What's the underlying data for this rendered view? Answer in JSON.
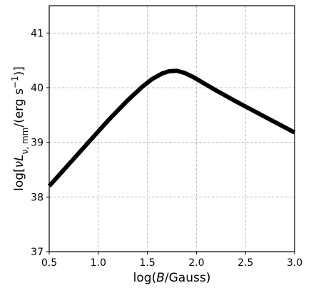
{
  "chart_data": {
    "type": "line",
    "title": "",
    "xlabel_parts": {
      "pre": "log(",
      "var": "B",
      "post": "/Gauss)"
    },
    "ylabel_parts": {
      "pre": "log[",
      "nu": "ν",
      "L": "L",
      "sub": "ν, mm",
      "mid": "/(erg s",
      "sup": "−1",
      "post": ")]"
    },
    "xlim": [
      0.5,
      3.0
    ],
    "ylim": [
      37,
      41.5
    ],
    "x_ticks": [
      0.5,
      1.0,
      1.5,
      2.0,
      2.5,
      3.0
    ],
    "x_tick_labels": [
      "0.5",
      "1.0",
      "1.5",
      "2.0",
      "2.5",
      "3.0"
    ],
    "y_ticks": [
      37,
      38,
      39,
      40,
      41
    ],
    "y_tick_labels": [
      "37",
      "38",
      "39",
      "40",
      "41"
    ],
    "grid": true,
    "legend": "none",
    "series": [
      {
        "color": "#000000",
        "x": [
          0.5,
          0.7,
          0.9,
          1.1,
          1.3,
          1.45,
          1.55,
          1.65,
          1.72,
          1.8,
          1.88,
          1.95,
          2.0,
          2.2,
          2.4,
          2.6,
          2.8,
          3.0
        ],
        "y": [
          38.2,
          38.6,
          39.0,
          39.4,
          39.77,
          40.02,
          40.16,
          40.26,
          40.3,
          40.31,
          40.27,
          40.21,
          40.16,
          39.95,
          39.75,
          39.56,
          39.37,
          39.18
        ]
      }
    ]
  }
}
